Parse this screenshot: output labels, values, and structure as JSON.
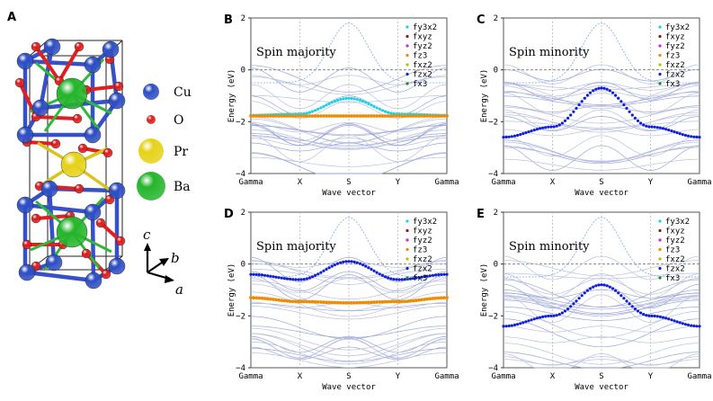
{
  "figure": {
    "crystal": {
      "panel_letter": "A",
      "legend": [
        {
          "label": "Cu",
          "color": "#2f4fc4"
        },
        {
          "label": "O",
          "color": "#e01e1e"
        },
        {
          "label": "Pr",
          "color": "#e6d21a"
        },
        {
          "label": "Ba",
          "color": "#25b52c"
        }
      ],
      "axes": {
        "c": "c",
        "b": "b",
        "a": "a"
      }
    },
    "panels": [
      {
        "letter": "B",
        "title": "Spin majority",
        "variant": "B"
      },
      {
        "letter": "C",
        "title": "Spin minority",
        "variant": "C"
      },
      {
        "letter": "D",
        "title": "Spin majority",
        "variant": "D"
      },
      {
        "letter": "E",
        "title": "Spin minority",
        "variant": "E"
      }
    ],
    "ylabel": "Energy (eV)",
    "xlabel": "Wave vector",
    "xticks": [
      "Gamma",
      "X",
      "S",
      "Y",
      "Gamma"
    ],
    "yticks": [
      "2",
      "0",
      "−2",
      "−4"
    ],
    "ylim": [
      -4,
      2
    ],
    "legend_entries": [
      {
        "label": "fy3x2",
        "color": "#19d3e6"
      },
      {
        "label": "fxyz",
        "color": "#8b1a1a"
      },
      {
        "label": "fyz2",
        "color": "#d12ad1"
      },
      {
        "label": "fz3",
        "color": "#f08c00"
      },
      {
        "label": "fxz2",
        "color": "#a8c800"
      },
      {
        "label": "fzx2",
        "color": "#1020d8"
      },
      {
        "label": "fx3",
        "color": "#1a8a1a"
      }
    ]
  },
  "chart_data": [
    {
      "type": "line",
      "panel": "B",
      "title": "Spin majority",
      "xlabel": "Wave vector",
      "ylabel": "Energy (eV)",
      "categories": [
        "Gamma",
        "X",
        "S",
        "Y",
        "Gamma"
      ],
      "ylim": [
        -4,
        2
      ],
      "series": [
        {
          "name": "fy3x2",
          "values": [
            -1.75,
            -1.7,
            -1.1,
            -1.7,
            -1.75
          ]
        },
        {
          "name": "fz3",
          "values": [
            -1.78,
            -1.78,
            -1.78,
            -1.78,
            -1.78
          ]
        }
      ]
    },
    {
      "type": "line",
      "panel": "C",
      "title": "Spin minority",
      "xlabel": "Wave vector",
      "ylabel": "Energy (eV)",
      "categories": [
        "Gamma",
        "X",
        "S",
        "Y",
        "Gamma"
      ],
      "ylim": [
        -4,
        2
      ],
      "series": [
        {
          "name": "fzx2",
          "values": [
            -2.6,
            -2.2,
            -0.7,
            -2.2,
            -2.6
          ]
        }
      ]
    },
    {
      "type": "line",
      "panel": "D",
      "title": "Spin majority",
      "xlabel": "Wave vector",
      "ylabel": "Energy (eV)",
      "categories": [
        "Gamma",
        "X",
        "S",
        "Y",
        "Gamma"
      ],
      "ylim": [
        -4,
        2
      ],
      "series": [
        {
          "name": "fz3",
          "values": [
            -1.3,
            -1.45,
            -1.5,
            -1.45,
            -1.3
          ]
        },
        {
          "name": "fzx2",
          "values": [
            -0.4,
            -0.6,
            0.1,
            -0.6,
            -0.4
          ]
        }
      ]
    },
    {
      "type": "line",
      "panel": "E",
      "title": "Spin minority",
      "xlabel": "Wave vector",
      "ylabel": "Energy (eV)",
      "categories": [
        "Gamma",
        "X",
        "S",
        "Y",
        "Gamma"
      ],
      "ylim": [
        -4,
        2
      ],
      "series": [
        {
          "name": "fzx2",
          "values": [
            -2.4,
            -2.0,
            -0.8,
            -2.0,
            -2.4
          ]
        }
      ]
    }
  ]
}
